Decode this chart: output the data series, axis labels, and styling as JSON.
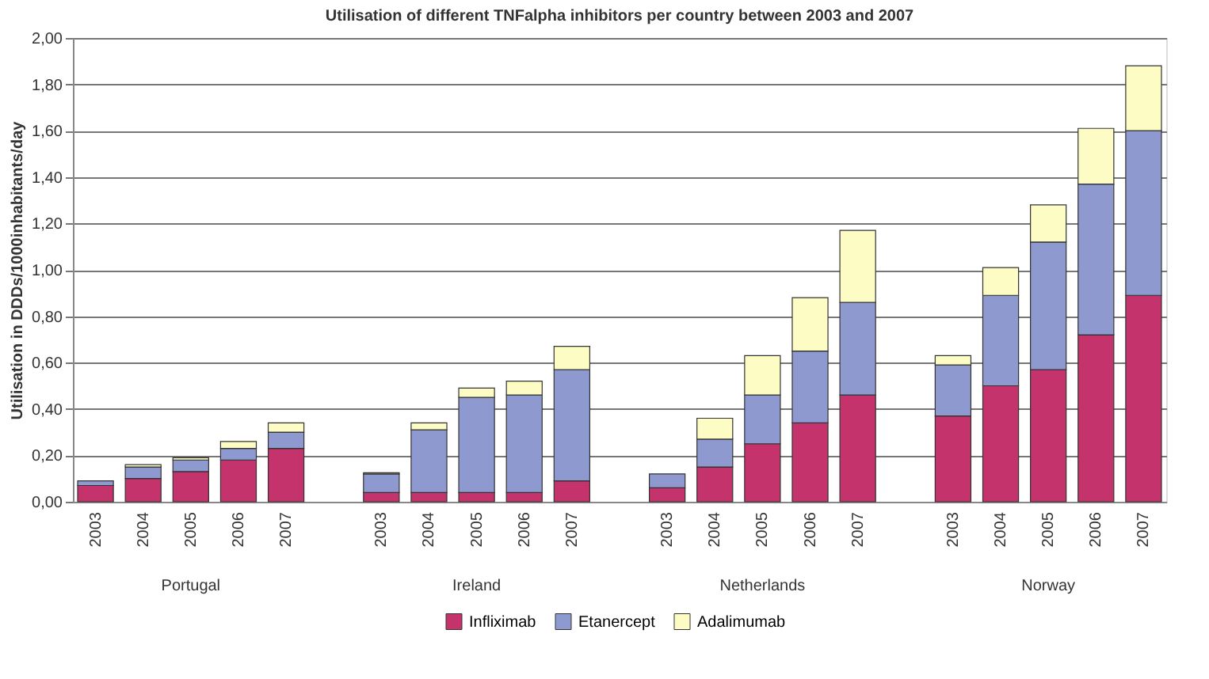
{
  "chart_data": {
    "type": "bar",
    "stacked": true,
    "title": "Utilisation of different TNFalpha inhibitors per country between 2003 and 2007",
    "ylabel": "Utilisation in DDDs/1000inhabitants/day",
    "categories": [
      "2003",
      "2004",
      "2005",
      "2006",
      "2007",
      null,
      "2003",
      "2004",
      "2005",
      "2006",
      "2007",
      null,
      "2003",
      "2004",
      "2005",
      "2006",
      "2007",
      null,
      "2003",
      "2004",
      "2005",
      "2006",
      "2007"
    ],
    "annotations": [
      "Portugal",
      "Ireland",
      "Netherlands",
      "Norway"
    ],
    "series": [
      {
        "name": "Infliximab",
        "color": "#c4336c",
        "values": [
          0.07,
          0.1,
          0.13,
          0.18,
          0.23,
          null,
          0.04,
          0.04,
          0.04,
          0.04,
          0.09,
          null,
          0.06,
          0.15,
          0.25,
          0.34,
          0.46,
          null,
          0.37,
          0.5,
          0.57,
          0.72,
          0.89
        ]
      },
      {
        "name": "Etanercept",
        "color": "#8e99d0",
        "values": [
          0.02,
          0.05,
          0.05,
          0.05,
          0.07,
          null,
          0.08,
          0.27,
          0.41,
          0.42,
          0.48,
          null,
          0.06,
          0.12,
          0.21,
          0.31,
          0.4,
          null,
          0.22,
          0.39,
          0.55,
          0.65,
          0.71
        ]
      },
      {
        "name": "Adalimumab",
        "color": "#fdfcc4",
        "values": [
          null,
          0.01,
          0.01,
          0.03,
          0.04,
          null,
          0.005,
          0.03,
          0.04,
          0.06,
          0.1,
          null,
          null,
          0.09,
          0.17,
          0.23,
          0.31,
          null,
          0.04,
          0.12,
          0.16,
          0.24,
          0.28
        ]
      }
    ],
    "ylim": [
      0,
      2
    ],
    "yticks": [
      {
        "value": 0,
        "label": "0,00"
      },
      {
        "value": 0.2,
        "label": "0,20"
      },
      {
        "value": 0.4,
        "label": "0,40"
      },
      {
        "value": 0.6,
        "label": "0,60"
      },
      {
        "value": 0.8,
        "label": "0,80"
      },
      {
        "value": 1.0,
        "label": "1,00"
      },
      {
        "value": 1.2,
        "label": "1,20"
      },
      {
        "value": 1.4,
        "label": "1,40"
      },
      {
        "value": 1.6,
        "label": "1,60"
      },
      {
        "value": 1.8,
        "label": "1,80"
      },
      {
        "value": 2.0,
        "label": "2,00"
      }
    ],
    "grid": "y",
    "legend": "bottom"
  }
}
